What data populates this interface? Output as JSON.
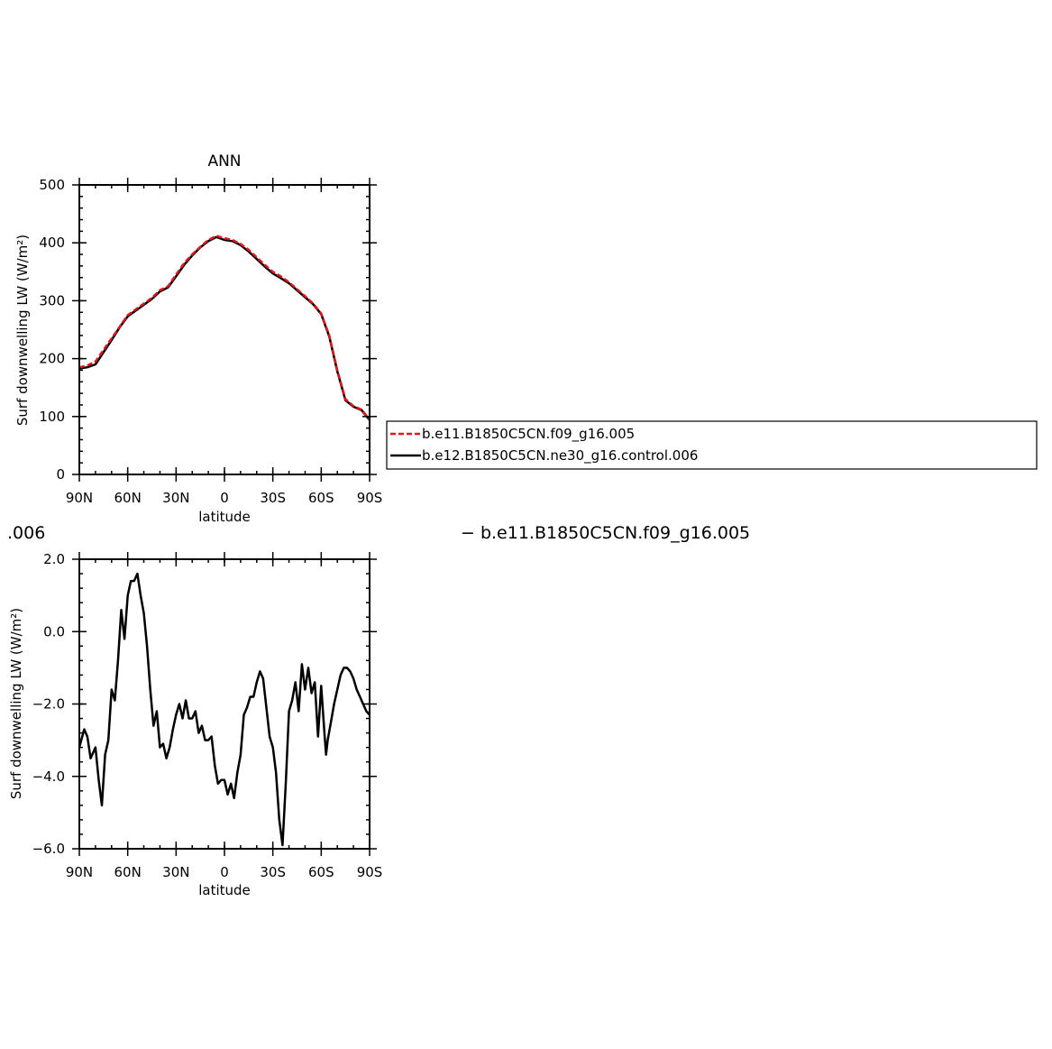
{
  "chart_data": [
    {
      "type": "line",
      "title": "ANN",
      "xlabel": "latitude",
      "ylabel": "Surf downwelling LW (W/m²)",
      "xlim": [
        90,
        -90
      ],
      "ylim": [
        0,
        500
      ],
      "yticks": [
        0,
        100,
        200,
        300,
        400,
        500
      ],
      "ytick_labels": [
        "0",
        "100",
        "200",
        "300",
        "400",
        "500"
      ],
      "xticks": [
        90,
        60,
        30,
        0,
        -30,
        -60,
        -90
      ],
      "xtick_labels": [
        "90N",
        "60N",
        "30N",
        "0",
        "30S",
        "60S",
        "90S"
      ],
      "legend_placement": "right",
      "series": [
        {
          "name": "b.e11.B1850C5CN.f09_g16.005",
          "color": "#e8141c",
          "dash": "dashed",
          "x": [
            90,
            85,
            80,
            75,
            70,
            65,
            60,
            55,
            50,
            45,
            40,
            35,
            30,
            25,
            20,
            15,
            10,
            5,
            0,
            -5,
            -10,
            -15,
            -20,
            -25,
            -30,
            -35,
            -40,
            -45,
            -50,
            -55,
            -60,
            -65,
            -70,
            -75,
            -80,
            -85,
            -90
          ],
          "values": [
            185,
            188,
            195,
            215,
            235,
            255,
            275,
            285,
            295,
            305,
            318,
            325,
            345,
            365,
            380,
            393,
            405,
            412,
            408,
            405,
            398,
            388,
            375,
            362,
            350,
            342,
            332,
            320,
            308,
            295,
            278,
            240,
            180,
            130,
            118,
            112,
            95
          ]
        },
        {
          "name": "b.e12.B1850C5CN.ne30_g16.control.006",
          "color": "#000000",
          "dash": "solid",
          "x": [
            90,
            85,
            80,
            75,
            70,
            65,
            60,
            55,
            50,
            45,
            40,
            35,
            30,
            25,
            20,
            15,
            10,
            5,
            0,
            -5,
            -10,
            -15,
            -20,
            -25,
            -30,
            -35,
            -40,
            -45,
            -50,
            -55,
            -60,
            -65,
            -70,
            -75,
            -80,
            -85,
            -90
          ],
          "values": [
            183,
            185,
            190,
            211,
            232,
            254,
            273,
            283,
            293,
            303,
            316,
            323,
            342,
            362,
            378,
            392,
            403,
            410,
            405,
            403,
            396,
            385,
            372,
            359,
            347,
            339,
            330,
            318,
            306,
            294,
            277,
            238,
            178,
            128,
            117,
            111,
            94
          ]
        }
      ]
    },
    {
      "type": "line",
      "title": "",
      "xlabel": "latitude",
      "ylabel": "Surf downwelling LW (W/m²)",
      "xlim": [
        90,
        -90
      ],
      "ylim": [
        -6,
        2
      ],
      "yticks": [
        -6,
        -4,
        -2,
        0,
        2
      ],
      "ytick_labels": [
        "−6.0",
        "−4.0",
        "−2.0",
        "0.0",
        "2.0"
      ],
      "xticks": [
        90,
        60,
        30,
        0,
        -30,
        -60,
        -90
      ],
      "xtick_labels": [
        "90N",
        "60N",
        "30N",
        "0",
        "30S",
        "60S",
        "90S"
      ],
      "series": [
        {
          "name": "",
          "color": "#000000",
          "dash": "solid",
          "x": [
            90,
            87,
            85,
            83,
            80,
            78,
            76,
            74,
            72,
            70,
            68,
            66,
            64,
            62,
            60,
            58,
            56,
            54,
            52,
            50,
            48,
            46,
            44,
            42,
            40,
            38,
            36,
            34,
            32,
            30,
            28,
            26,
            24,
            22,
            20,
            18,
            16,
            14,
            12,
            10,
            8,
            6,
            4,
            2,
            0,
            -2,
            -4,
            -6,
            -8,
            -10,
            -12,
            -14,
            -16,
            -18,
            -20,
            -22,
            -24,
            -26,
            -28,
            -30,
            -32,
            -34,
            -36,
            -38,
            -40,
            -42,
            -44,
            -46,
            -48,
            -50,
            -52,
            -54,
            -56,
            -58,
            -60,
            -62,
            -63,
            -64,
            -66,
            -68,
            -70,
            -72,
            -74,
            -76,
            -78,
            -80,
            -82,
            -84,
            -86,
            -88,
            -90
          ],
          "values": [
            -3.2,
            -2.7,
            -2.9,
            -3.5,
            -3.2,
            -4.1,
            -4.8,
            -3.4,
            -3.0,
            -1.6,
            -1.9,
            -0.8,
            0.6,
            -0.2,
            1.0,
            1.4,
            1.4,
            1.6,
            1.0,
            0.5,
            -0.4,
            -1.6,
            -2.6,
            -2.2,
            -3.2,
            -3.1,
            -3.5,
            -3.2,
            -2.7,
            -2.3,
            -2.0,
            -2.4,
            -1.9,
            -2.4,
            -2.4,
            -2.2,
            -2.8,
            -2.6,
            -3.0,
            -3.0,
            -2.9,
            -3.7,
            -4.2,
            -4.1,
            -4.1,
            -4.5,
            -4.2,
            -4.6,
            -3.9,
            -3.4,
            -2.3,
            -2.1,
            -1.8,
            -1.8,
            -1.4,
            -1.1,
            -1.3,
            -2.1,
            -2.9,
            -3.2,
            -3.9,
            -5.2,
            -5.9,
            -4.2,
            -2.2,
            -1.9,
            -1.4,
            -2.2,
            -0.9,
            -1.6,
            -1.0,
            -1.7,
            -1.4,
            -2.9,
            -1.5,
            -2.8,
            -3.4,
            -3.0,
            -2.5,
            -2.0,
            -1.6,
            -1.2,
            -1.0,
            -1.0,
            -1.1,
            -1.3,
            -1.6,
            -1.8,
            -2.0,
            -2.2,
            -2.3
          ]
        }
      ]
    }
  ],
  "legend": {
    "entries": [
      "b.e11.B1850C5CN.f09_g16.005",
      "b.e12.B1850C5CN.ne30_g16.control.006"
    ]
  },
  "stray_text": {
    "left": ".006",
    "right": "− b.e11.B1850C5CN.f09_g16.005"
  }
}
